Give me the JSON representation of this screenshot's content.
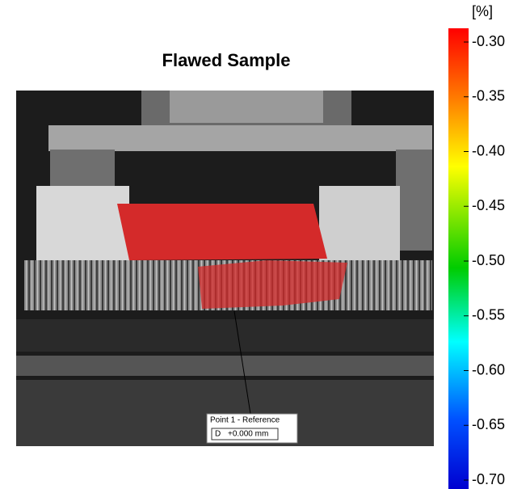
{
  "title": "Flawed Sample",
  "colorbar": {
    "unit": "[%]",
    "clim": [
      -0.7,
      -0.3
    ],
    "ticks": [
      {
        "value": -0.3,
        "label": "-0.30"
      },
      {
        "value": -0.35,
        "label": "-0.35"
      },
      {
        "value": -0.4,
        "label": "-0.40"
      },
      {
        "value": -0.45,
        "label": "-0.45"
      },
      {
        "value": -0.5,
        "label": "-0.50"
      },
      {
        "value": -0.55,
        "label": "-0.55"
      },
      {
        "value": -0.6,
        "label": "-0.60"
      },
      {
        "value": -0.65,
        "label": "-0.65"
      },
      {
        "value": -0.7,
        "label": "-0.70"
      }
    ]
  },
  "annotation": {
    "title": "Point 1 - Reference",
    "quantity": "D",
    "value": "+0.000 mm"
  }
}
